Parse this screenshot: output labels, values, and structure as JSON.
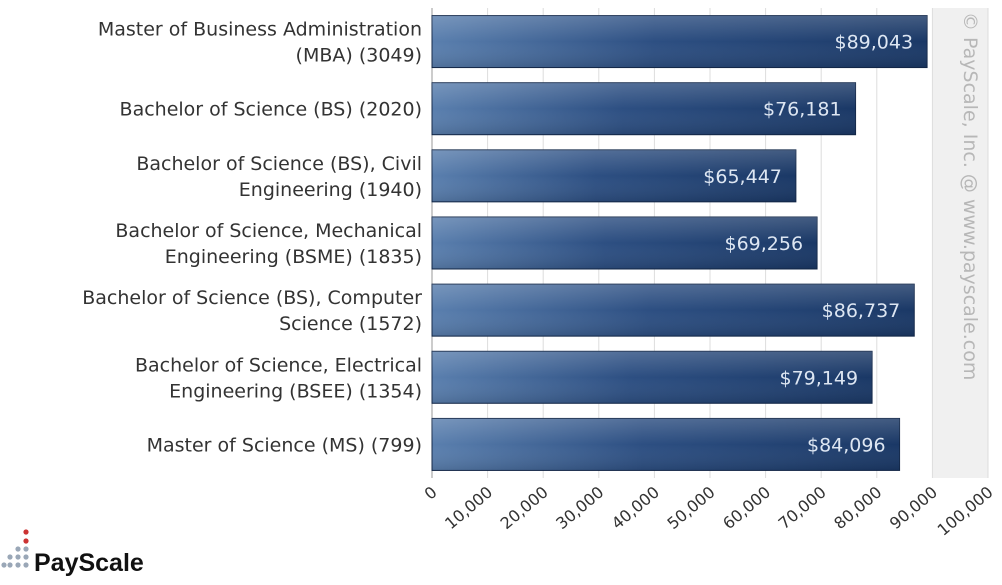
{
  "chart_data": {
    "type": "bar",
    "orientation": "horizontal",
    "categories": [
      [
        "Master of Business Administration",
        "(MBA) (3049)"
      ],
      [
        "Bachelor of Science (BS) (2020)"
      ],
      [
        "Bachelor of Science (BS), Civil",
        "Engineering (1940)"
      ],
      [
        "Bachelor of Science, Mechanical",
        "Engineering (BSME) (1835)"
      ],
      [
        "Bachelor of Science (BS), Computer",
        "Science (1572)"
      ],
      [
        "Bachelor of Science, Electrical",
        "Engineering (BSEE) (1354)"
      ],
      [
        "Master of Science (MS) (799)"
      ]
    ],
    "values": [
      89043,
      76181,
      65447,
      69256,
      86737,
      79149,
      84096
    ],
    "value_labels": [
      "$89,043",
      "$76,181",
      "$65,447",
      "$69,256",
      "$86,737",
      "$79,149",
      "$84,096"
    ],
    "xlim": [
      0,
      100000
    ],
    "x_ticks": [
      0,
      10000,
      20000,
      30000,
      40000,
      50000,
      60000,
      70000,
      80000,
      90000,
      100000
    ],
    "x_tick_labels": [
      "0",
      "10,000",
      "20,000",
      "30,000",
      "40,000",
      "50,000",
      "60,000",
      "70,000",
      "80,000",
      "90,000",
      "100,000"
    ],
    "grid": true,
    "title": "",
    "xlabel": "",
    "ylabel": ""
  },
  "watermark": "© PayScale, Inc. @ www.payscale.com",
  "logo": {
    "text": "PayScale"
  },
  "colors": {
    "bar_dark": "#1c3a66",
    "bar_light": "#5277a6",
    "plot_band": "#f0f0f0",
    "grid": "#dddddd",
    "logo_dot_red": "#cc3333",
    "logo_dot_gray": "#9aa7b7"
  }
}
